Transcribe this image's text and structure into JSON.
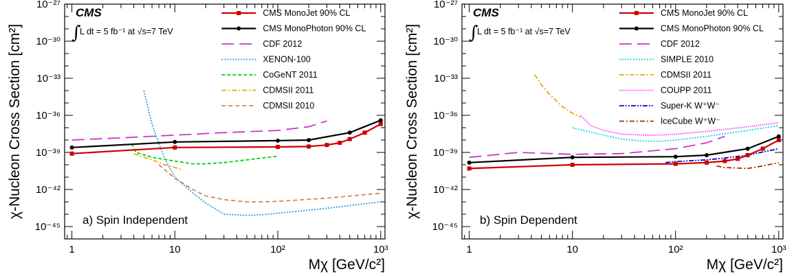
{
  "figure": {
    "cms_label": "CMS",
    "lumi_text": "L dt = 5 fb⁻¹ at √s=7 TeV",
    "y_axis_title": "χ-Nucleon Cross Section [cm²]",
    "x_axis_title": "Mχ [GeV/c²]"
  },
  "chart_data": [
    {
      "type": "line",
      "panel_label": "a) Spin Independent",
      "xlabel": "Mχ [GeV/c²]",
      "ylabel": "χ-Nucleon Cross Section [cm²]",
      "x_scale": "log",
      "y_scale": "log",
      "xlim": [
        0.85,
        1100
      ],
      "ylim": [
        1e-46,
        1e-27
      ],
      "x_tick_labels": [
        "1",
        "10",
        "10²",
        "10³"
      ],
      "x_tick_values": [
        1,
        10,
        100,
        1000
      ],
      "y_tick_labels": [
        "10⁻⁴⁵",
        "10⁻⁴²",
        "10⁻³⁹",
        "10⁻³⁶",
        "10⁻³³",
        "10⁻³⁰",
        "10⁻²⁷"
      ],
      "y_tick_values": [
        1e-45,
        1e-42,
        1e-39,
        1e-36,
        1e-33,
        1e-30,
        1e-27
      ],
      "legend_position": "top-right",
      "series": [
        {
          "name": "CMS MonoJet 90% CL",
          "color": "#cc0000",
          "style": "solid-square",
          "x": [
            1,
            10,
            100,
            200,
            300,
            400,
            500,
            700,
            1000
          ],
          "y": [
            8e-40,
            2.5e-39,
            2.8e-39,
            3e-39,
            4e-39,
            6e-39,
            1.2e-38,
            4e-38,
            2e-37
          ]
        },
        {
          "name": "CMS MonoPhoton 90% CL",
          "color": "#000000",
          "style": "solid-circle",
          "x": [
            1,
            10,
            100,
            200,
            500,
            1000
          ],
          "y": [
            2.5e-39,
            7e-39,
            9e-39,
            1e-38,
            4e-38,
            4e-37
          ]
        },
        {
          "name": "CDF 2012",
          "color": "#cc33cc",
          "style": "long-dash",
          "x": [
            1,
            3,
            10,
            30,
            100,
            200,
            300
          ],
          "y": [
            1e-38,
            1.5e-38,
            2.5e-38,
            4e-38,
            6e-38,
            1.2e-37,
            3.5e-37
          ]
        },
        {
          "name": "XENON-100",
          "color": "#2a9fd6",
          "style": "dotted",
          "x": [
            5,
            6,
            7,
            8,
            10,
            15,
            20,
            30,
            50,
            70,
            100,
            300,
            1000
          ],
          "y": [
            1e-34,
            2e-37,
            5e-39,
            3e-40,
            1e-41,
            5e-43,
            8e-44,
            1e-44,
            8e-45,
            9e-45,
            1.2e-44,
            3e-44,
            1e-43
          ]
        },
        {
          "name": "CoGeNT 2011",
          "color": "#00cc00",
          "style": "dashed",
          "x": [
            3.8,
            4.2,
            6,
            10,
            15,
            20,
            30,
            50,
            100
          ],
          "y": [
            5e-39,
            1e-39,
            4e-40,
            2e-40,
            1.2e-40,
            1.2e-40,
            1.5e-40,
            2.5e-40,
            5e-40
          ]
        },
        {
          "name": "CDMSII 2011",
          "color": "#e6a800",
          "style": "dash-dot",
          "x": [
            4,
            5,
            6,
            8,
            10,
            12
          ],
          "y": [
            8e-40,
            4e-40,
            2.5e-40,
            1e-40,
            6e-41,
            4e-41
          ]
        },
        {
          "name": "CDMSII 2010",
          "color": "#cc8855",
          "style": "short-dash",
          "x": [
            7,
            10,
            15,
            20,
            30,
            50,
            70,
            100,
            300,
            1000
          ],
          "y": [
            1e-40,
            8e-42,
            1e-42,
            3e-43,
            1.5e-43,
            1e-43,
            1e-43,
            1.1e-43,
            2e-43,
            5e-43
          ]
        }
      ]
    },
    {
      "type": "line",
      "panel_label": "b) Spin Dependent",
      "xlabel": "Mχ [GeV/c²]",
      "ylabel": "χ-Nucleon Cross Section [cm²]",
      "x_scale": "log",
      "y_scale": "log",
      "xlim": [
        0.85,
        1100
      ],
      "ylim": [
        1e-46,
        1e-27
      ],
      "x_tick_labels": [
        "1",
        "10",
        "10²",
        "10³"
      ],
      "x_tick_values": [
        1,
        10,
        100,
        1000
      ],
      "y_tick_labels": [
        "10⁻⁴⁵",
        "10⁻⁴²",
        "10⁻³⁹",
        "10⁻³⁶",
        "10⁻³³",
        "10⁻³⁰",
        "10⁻²⁷"
      ],
      "y_tick_values": [
        1e-45,
        1e-42,
        1e-39,
        1e-36,
        1e-33,
        1e-30,
        1e-27
      ],
      "legend_position": "top-right",
      "series": [
        {
          "name": "CMS MonoJet 90% CL",
          "color": "#cc0000",
          "style": "solid-square",
          "x": [
            1,
            10,
            100,
            200,
            300,
            400,
            500,
            700,
            1000
          ],
          "y": [
            5e-41,
            1e-40,
            1.2e-40,
            1.5e-40,
            2e-40,
            3e-40,
            6e-40,
            2e-39,
            1e-38
          ]
        },
        {
          "name": "CMS MonoPhoton 90% CL",
          "color": "#000000",
          "style": "solid-circle",
          "x": [
            1,
            10,
            100,
            200,
            500,
            1000
          ],
          "y": [
            1.5e-40,
            4e-40,
            4.5e-40,
            6e-40,
            2e-39,
            2e-38
          ]
        },
        {
          "name": "CDF 2012",
          "color": "#cc33cc",
          "style": "long-dash",
          "x": [
            1,
            3,
            10,
            30,
            100,
            200,
            300
          ],
          "y": [
            4e-40,
            1e-39,
            7e-40,
            8e-40,
            2e-39,
            6e-39,
            2e-38
          ]
        },
        {
          "name": "SIMPLE 2010",
          "color": "#00dddd",
          "style": "dotted",
          "x": [
            10,
            20,
            30,
            50,
            70,
            100,
            200,
            500,
            1000
          ],
          "y": [
            1e-37,
            2.5e-38,
            1.2e-38,
            8e-39,
            8e-39,
            1e-38,
            2e-38,
            6e-38,
            1.5e-37
          ]
        },
        {
          "name": "CDMSII 2011",
          "color": "#e6a800",
          "style": "dash-dot",
          "x": [
            4.3,
            5,
            6,
            8,
            10,
            12
          ],
          "y": [
            2e-33,
            3e-34,
            5e-35,
            5e-36,
            1.5e-36,
            7e-37
          ]
        },
        {
          "name": "COUPP 2011",
          "color": "#ff33ff",
          "style": "fine-dotted",
          "x": [
            12,
            15,
            20,
            30,
            50,
            70,
            100,
            200,
            500,
            1000
          ],
          "y": [
            1e-36,
            1.5e-37,
            6e-38,
            3e-38,
            2.5e-38,
            2.5e-38,
            3e-38,
            5e-38,
            1.2e-37,
            2.5e-37
          ]
        },
        {
          "name": "Super-K W⁺W⁻",
          "color": "#0000cc",
          "style": "dash-dot-dot",
          "x": [
            80,
            100,
            200,
            300,
            500,
            1000
          ],
          "y": [
            1.5e-40,
            1.8e-40,
            2.5e-40,
            3.5e-40,
            6e-40,
            2e-39
          ]
        },
        {
          "name": "IceCube W⁺W⁻",
          "color": "#993300",
          "style": "dash-dot",
          "x": [
            250,
            300,
            500,
            700,
            1000
          ],
          "y": [
            8e-41,
            6e-41,
            5e-41,
            8e-41,
            1.5e-40
          ]
        }
      ]
    }
  ]
}
